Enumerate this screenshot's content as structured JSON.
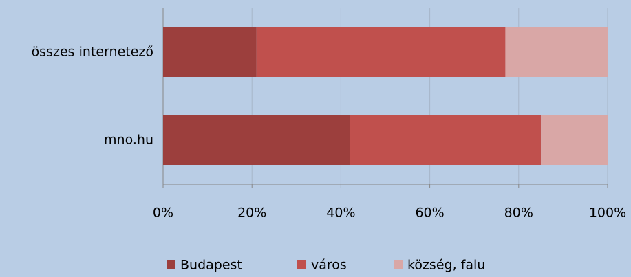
{
  "chart_data": {
    "type": "stacked-barh",
    "categories": [
      "összes internetező",
      "mno.hu"
    ],
    "series": [
      {
        "name": "Budapest",
        "color": "#9c3f3d",
        "values": [
          21,
          42
        ]
      },
      {
        "name": "város",
        "color": "#c0504d",
        "values": [
          56,
          43
        ]
      },
      {
        "name": "község, falu",
        "color": "#d9a7a6",
        "values": [
          23,
          15
        ]
      }
    ],
    "xlim": [
      0,
      100
    ],
    "xticks": [
      {
        "value": 0,
        "label": "0%"
      },
      {
        "value": 20,
        "label": "20%"
      },
      {
        "value": 40,
        "label": "40%"
      },
      {
        "value": 60,
        "label": "60%"
      },
      {
        "value": 80,
        "label": "80%"
      },
      {
        "value": 100,
        "label": "100%"
      }
    ],
    "grid": true,
    "legend": "bottom"
  }
}
